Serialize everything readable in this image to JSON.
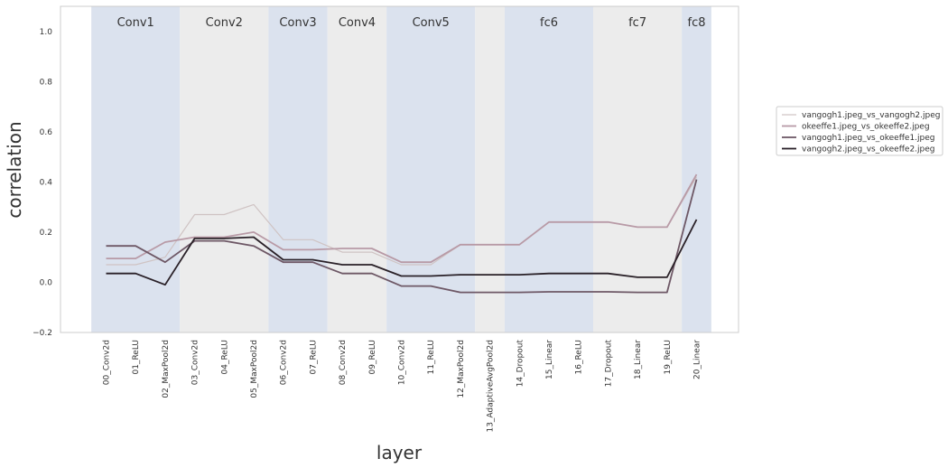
{
  "chart_data": {
    "type": "line",
    "xlabel": "layer",
    "ylabel": "correlation",
    "ylim": [
      -0.2,
      1.1
    ],
    "yticks": [
      -0.2,
      0.0,
      0.2,
      0.4,
      0.6,
      0.8,
      1.0
    ],
    "ytick_labels": [
      "−0.2",
      "0.0",
      "0.2",
      "0.4",
      "0.6",
      "0.8",
      "1.0"
    ],
    "grid": false,
    "legend_position": "right",
    "categories": [
      "00_Conv2d",
      "01_ReLU",
      "02_MaxPool2d",
      "03_Conv2d",
      "04_ReLU",
      "05_MaxPool2d",
      "06_Conv2d",
      "07_ReLU",
      "08_Conv2d",
      "09_ReLU",
      "10_Conv2d",
      "11_ReLU",
      "12_MaxPool2d",
      "13_AdaptiveAvgPool2d",
      "14_Dropout",
      "15_Linear",
      "16_ReLU",
      "17_Dropout",
      "18_Linear",
      "19_ReLU",
      "20_Linear"
    ],
    "bands": [
      {
        "label": "Conv1",
        "from": 0,
        "to": 2,
        "color": "#dbe2ee"
      },
      {
        "label": "Conv2",
        "from": 3,
        "to": 5,
        "color": "#ececec"
      },
      {
        "label": "Conv3",
        "from": 6,
        "to": 7,
        "color": "#dbe2ee"
      },
      {
        "label": "Conv4",
        "from": 8,
        "to": 9,
        "color": "#ececec"
      },
      {
        "label": "Conv5",
        "from": 10,
        "to": 12,
        "color": "#dbe2ee"
      },
      {
        "label": "",
        "from": 13,
        "to": 13,
        "color": "#ececec"
      },
      {
        "label": "fc6",
        "from": 14,
        "to": 16,
        "color": "#dbe2ee"
      },
      {
        "label": "fc7",
        "from": 17,
        "to": 19,
        "color": "#ececec"
      },
      {
        "label": "fc8",
        "from": 20,
        "to": 20,
        "color": "#dbe2ee"
      }
    ],
    "series": [
      {
        "name": "vangogh1.jpeg_vs_vangogh2.jpeg",
        "color": "#cfc3c3",
        "width": 1.2,
        "values": [
          0.07,
          0.07,
          0.1,
          0.27,
          0.27,
          0.31,
          0.17,
          0.17,
          0.12,
          0.12,
          0.07,
          0.07,
          0.15,
          0.15,
          0.15,
          0.24,
          0.24,
          0.24,
          0.22,
          0.22,
          0.42
        ]
      },
      {
        "name": "okeeffe1.jpeg_vs_okeeffe2.jpeg",
        "color": "#b89aa6",
        "width": 1.8,
        "values": [
          0.095,
          0.095,
          0.16,
          0.18,
          0.18,
          0.2,
          0.13,
          0.13,
          0.135,
          0.135,
          0.08,
          0.08,
          0.15,
          0.15,
          0.15,
          0.24,
          0.24,
          0.24,
          0.22,
          0.22,
          0.43
        ]
      },
      {
        "name": "vangogh1.jpeg_vs_okeeffe1.jpeg",
        "color": "#6e5866",
        "width": 1.8,
        "values": [
          0.145,
          0.145,
          0.08,
          0.165,
          0.165,
          0.145,
          0.08,
          0.08,
          0.035,
          0.035,
          -0.015,
          -0.015,
          -0.04,
          -0.04,
          -0.04,
          -0.038,
          -0.038,
          -0.038,
          -0.04,
          -0.04,
          0.41
        ]
      },
      {
        "name": "vangogh2.jpeg_vs_okeeffe2.jpeg",
        "color": "#2a2128",
        "width": 1.8,
        "values": [
          0.035,
          0.035,
          -0.01,
          0.175,
          0.175,
          0.18,
          0.09,
          0.09,
          0.07,
          0.07,
          0.025,
          0.025,
          0.03,
          0.03,
          0.03,
          0.035,
          0.035,
          0.035,
          0.02,
          0.02,
          0.25
        ]
      }
    ]
  }
}
